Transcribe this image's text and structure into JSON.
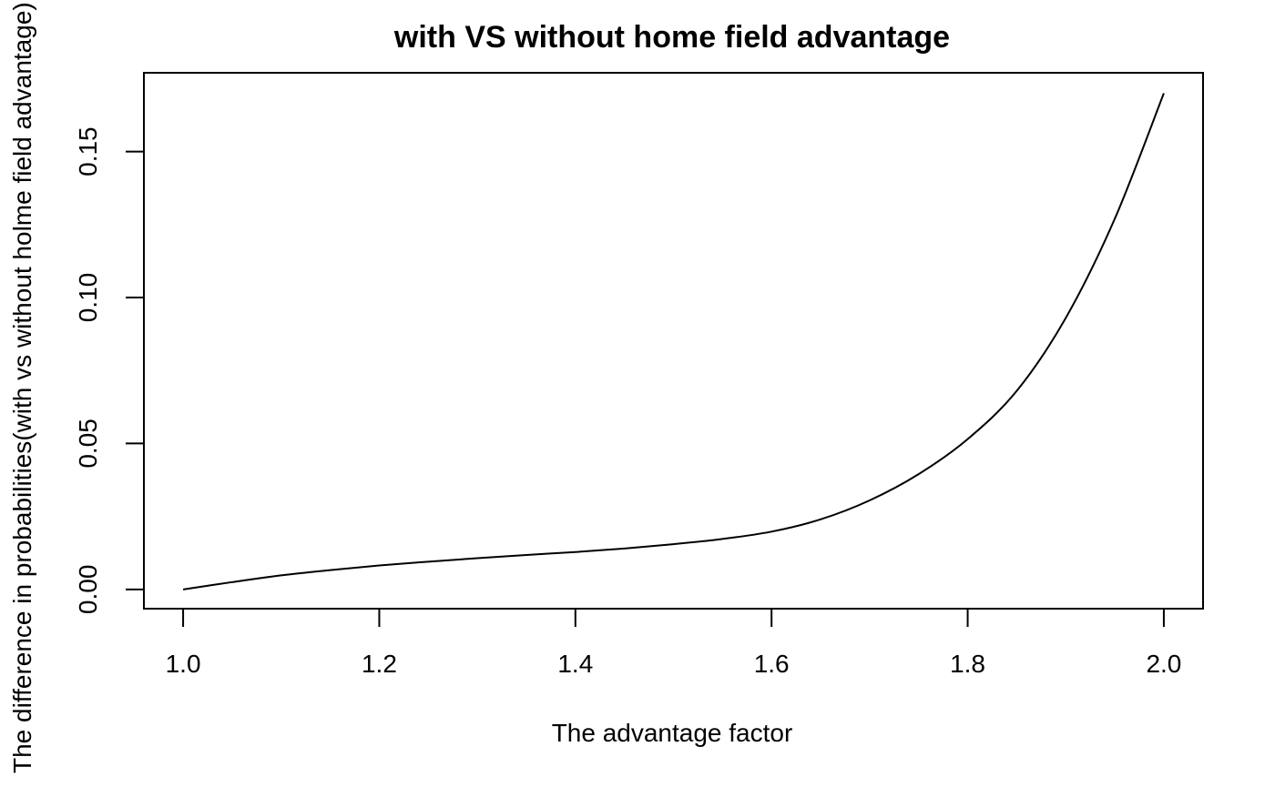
{
  "chart_data": {
    "type": "line",
    "title": "with VS without home field advantage",
    "xlabel": "The advantage factor",
    "ylabel": "The difference in probabilities(with vs without holme field advantage)",
    "xlim": [
      0.96,
      2.04
    ],
    "ylim": [
      -0.0066,
      0.177
    ],
    "xticks": [
      1.0,
      1.2,
      1.4,
      1.6,
      1.8,
      2.0
    ],
    "xtick_labels": [
      "1.0",
      "1.2",
      "1.4",
      "1.6",
      "1.8",
      "2.0"
    ],
    "yticks": [
      0.0,
      0.05,
      0.1,
      0.15
    ],
    "ytick_labels": [
      "0.00",
      "0.05",
      "0.10",
      "0.15"
    ],
    "grid": false,
    "series": [
      {
        "x": [
          1.0,
          1.05,
          1.1,
          1.15,
          1.2,
          1.25,
          1.3,
          1.35,
          1.4,
          1.45,
          1.5,
          1.55,
          1.6,
          1.65,
          1.7,
          1.75,
          1.8,
          1.85,
          1.9,
          1.95,
          2.0
        ],
        "y": [
          0.0,
          0.0025,
          0.0048,
          0.0066,
          0.0082,
          0.0095,
          0.0107,
          0.0118,
          0.0128,
          0.014,
          0.0155,
          0.0173,
          0.0198,
          0.024,
          0.0305,
          0.0395,
          0.0515,
          0.068,
          0.093,
          0.127,
          0.17
        ],
        "color": "#000000"
      }
    ]
  }
}
